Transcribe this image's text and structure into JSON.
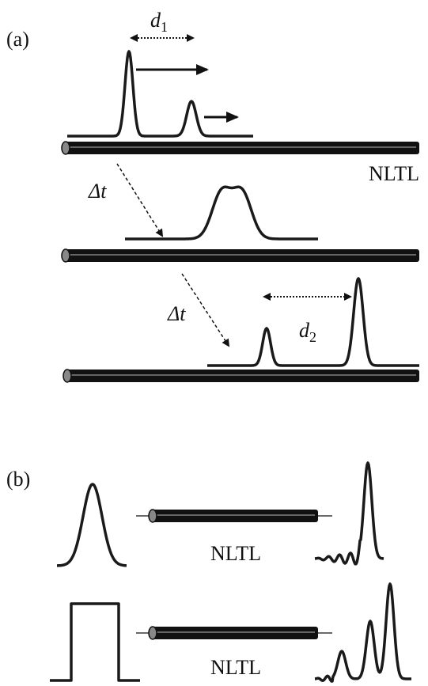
{
  "panel_a": {
    "label": "(a)",
    "d1": {
      "base": "d",
      "sub": "1"
    },
    "line_label": "NLTL",
    "delay_1": "Δt",
    "delay_2": "Δt",
    "d2": {
      "base": "d",
      "sub": "2"
    }
  },
  "panel_b": {
    "label": "(b)",
    "line_label_1": "NLTL",
    "line_label_2": "NLTL"
  }
}
